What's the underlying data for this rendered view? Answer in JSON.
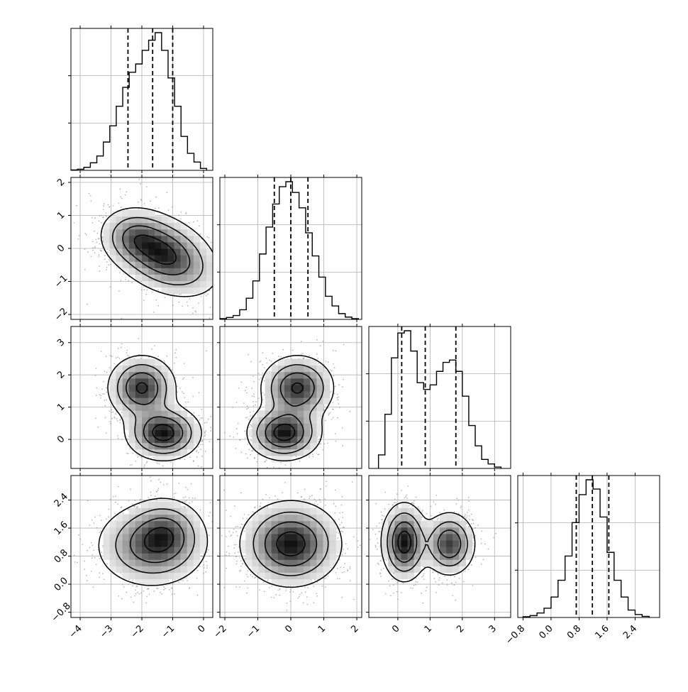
{
  "chart_data": {
    "type": "corner",
    "parameters": 4,
    "grid": true,
    "colors": {
      "line": "#000000",
      "grid": "#b0b0b0",
      "scatter": "#7f7f7f",
      "fill_dark": "#000000",
      "fill_light": "#ffffff"
    },
    "axes": [
      {
        "index": 0,
        "xlim": [
          -4.3,
          0.3
        ],
        "ticks": [
          -4,
          -3,
          -2,
          -1,
          0
        ],
        "tick_labels": [
          "−4",
          "−3",
          "−2",
          "−1",
          "0"
        ]
      },
      {
        "index": 1,
        "xlim": [
          -2.15,
          2.15
        ],
        "ticks": [
          -2,
          -1,
          0,
          1,
          2
        ],
        "tick_labels": [
          "−2",
          "−1",
          "0",
          "1",
          "2"
        ]
      },
      {
        "index": 2,
        "xlim": [
          -0.9,
          3.5
        ],
        "ticks": [
          0,
          1,
          2,
          3
        ],
        "tick_labels": [
          "0",
          "1",
          "2",
          "3"
        ]
      },
      {
        "index": 3,
        "xlim": [
          -0.95,
          3.1
        ],
        "ticks": [
          -0.8,
          0.0,
          0.8,
          1.6,
          2.4
        ],
        "tick_labels": [
          "−0.8",
          "0.0",
          "0.8",
          "1.6",
          "2.4"
        ]
      }
    ],
    "histograms": [
      {
        "param": 0,
        "quantiles": [
          -2.45,
          -1.65,
          -1.0
        ],
        "bin_edges": [
          -4.3,
          -4.09,
          -3.88,
          -3.67,
          -3.46,
          -3.25,
          -3.04,
          -2.83,
          -2.62,
          -2.41,
          -2.2,
          -1.99,
          -1.78,
          -1.57,
          -1.36,
          -1.15,
          -0.94,
          -0.73,
          -0.52,
          -0.31,
          -0.1,
          0.1
        ],
        "counts": [
          1,
          3,
          8,
          20,
          38,
          75,
          118,
          170,
          220,
          260,
          282,
          318,
          345,
          365,
          318,
          245,
          170,
          90,
          45,
          22,
          5
        ]
      },
      {
        "param": 1,
        "quantiles": [
          -0.5,
          0.0,
          0.52
        ],
        "bin_edges": [
          -2.15,
          -1.95,
          -1.75,
          -1.55,
          -1.35,
          -1.15,
          -0.95,
          -0.75,
          -0.55,
          -0.35,
          -0.15,
          0.05,
          0.25,
          0.45,
          0.65,
          0.85,
          1.05,
          1.25,
          1.45,
          1.65,
          1.85,
          2.05
        ],
        "counts": [
          2,
          5,
          10,
          25,
          55,
          100,
          170,
          240,
          300,
          345,
          358,
          330,
          290,
          225,
          165,
          110,
          60,
          35,
          15,
          6,
          2
        ]
      },
      {
        "param": 2,
        "quantiles": [
          0.12,
          0.85,
          1.8
        ],
        "bin_edges": [
          -0.6,
          -0.4,
          -0.2,
          0.0,
          0.2,
          0.4,
          0.6,
          0.8,
          1.0,
          1.2,
          1.4,
          1.6,
          1.8,
          2.0,
          2.2,
          2.4,
          2.6,
          2.8,
          3.0,
          3.2
        ],
        "counts": [
          30,
          120,
          245,
          300,
          305,
          260,
          190,
          175,
          185,
          215,
          235,
          240,
          215,
          160,
          95,
          50,
          20,
          10,
          3
        ]
      },
      {
        "param": 3,
        "quantiles": [
          0.72,
          1.18,
          1.65
        ],
        "bin_edges": [
          -0.8,
          -0.6,
          -0.4,
          -0.2,
          0.0,
          0.2,
          0.4,
          0.6,
          0.8,
          1.0,
          1.2,
          1.4,
          1.6,
          1.8,
          2.0,
          2.2,
          2.4,
          2.6,
          2.8
        ],
        "counts": [
          2,
          5,
          12,
          25,
          55,
          100,
          165,
          255,
          330,
          370,
          345,
          270,
          175,
          100,
          55,
          20,
          8,
          3
        ]
      }
    ],
    "pairs": [
      {
        "x": 0,
        "y": 1,
        "modes": [
          {
            "cx": -1.35,
            "cy": -0.15,
            "rx": 0.95,
            "ry": 0.55,
            "rot": -25,
            "w": 1.0
          },
          {
            "cx": -2.3,
            "cy": 0.35,
            "rx": 0.5,
            "ry": 0.4,
            "rot": 0,
            "w": 0.3
          }
        ]
      },
      {
        "x": 0,
        "y": 2,
        "modes": [
          {
            "cx": -1.3,
            "cy": 0.2,
            "rx": 0.6,
            "ry": 0.42,
            "rot": 0,
            "w": 1.0
          },
          {
            "cx": -2.0,
            "cy": 1.6,
            "rx": 0.55,
            "ry": 0.5,
            "rot": 0,
            "w": 0.9
          }
        ]
      },
      {
        "x": 1,
        "y": 2,
        "modes": [
          {
            "cx": -0.2,
            "cy": 0.2,
            "rx": 0.55,
            "ry": 0.42,
            "rot": 0,
            "w": 1.0
          },
          {
            "cx": 0.2,
            "cy": 1.6,
            "rx": 0.55,
            "ry": 0.5,
            "rot": 0,
            "w": 0.9
          }
        ]
      },
      {
        "x": 0,
        "y": 3,
        "modes": [
          {
            "cx": -1.7,
            "cy": 1.1,
            "rx": 0.9,
            "ry": 0.6,
            "rot": 0,
            "w": 1.0
          },
          {
            "cx": -1.2,
            "cy": 1.5,
            "rx": 0.6,
            "ry": 0.5,
            "rot": 0,
            "w": 0.6
          }
        ]
      },
      {
        "x": 1,
        "y": 3,
        "modes": [
          {
            "cx": 0.0,
            "cy": 1.15,
            "rx": 0.75,
            "ry": 0.6,
            "rot": 0,
            "w": 1.0
          }
        ]
      },
      {
        "x": 2,
        "y": 3,
        "modes": [
          {
            "cx": 0.2,
            "cy": 1.2,
            "rx": 0.35,
            "ry": 0.55,
            "rot": 0,
            "w": 1.0
          },
          {
            "cx": 1.6,
            "cy": 1.15,
            "rx": 0.4,
            "ry": 0.45,
            "rot": 0,
            "w": 0.85
          }
        ]
      }
    ]
  }
}
